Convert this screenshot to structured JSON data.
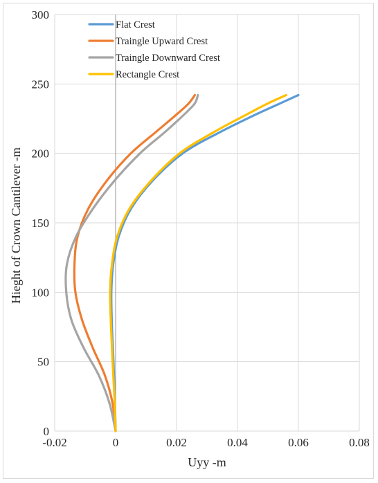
{
  "chart_data": {
    "type": "line",
    "xlabel": "Uyy  -m",
    "ylabel": "Hieght of Crown Cantilever  -m",
    "xlim": [
      -0.02,
      0.08
    ],
    "ylim": [
      0,
      300
    ],
    "x_ticks": [
      -0.02,
      0,
      0.02,
      0.04,
      0.06,
      0.08
    ],
    "y_ticks": [
      0,
      50,
      100,
      150,
      200,
      250,
      300
    ],
    "x_tick_labels": [
      "-0.02",
      "0",
      "0.02",
      "0.04",
      "0.06",
      "0.08"
    ],
    "y_tick_labels": [
      "0",
      "50",
      "100",
      "150",
      "200",
      "250",
      "300"
    ],
    "grid": {
      "horizontal": true,
      "vertical": true
    },
    "legend_position": "top-left",
    "series": [
      {
        "name": "Flat Crest",
        "color": "#5b9bd5",
        "points": [
          [
            0.0,
            0
          ],
          [
            -0.0003,
            25
          ],
          [
            -0.0007,
            50
          ],
          [
            -0.0012,
            75
          ],
          [
            -0.0014,
            100
          ],
          [
            -0.0008,
            120
          ],
          [
            0.001,
            140
          ],
          [
            0.005,
            160
          ],
          [
            0.012,
            180
          ],
          [
            0.022,
            200
          ],
          [
            0.034,
            215
          ],
          [
            0.046,
            228
          ],
          [
            0.054,
            236
          ],
          [
            0.06,
            242
          ]
        ]
      },
      {
        "name": "Traingle Upward Crest",
        "color": "#ed7d31",
        "points": [
          [
            0.0,
            0
          ],
          [
            -0.001,
            20
          ],
          [
            -0.0035,
            40
          ],
          [
            -0.0075,
            60
          ],
          [
            -0.011,
            80
          ],
          [
            -0.0132,
            100
          ],
          [
            -0.0135,
            120
          ],
          [
            -0.0125,
            140
          ],
          [
            -0.009,
            160
          ],
          [
            -0.003,
            180
          ],
          [
            0.005,
            200
          ],
          [
            0.013,
            215
          ],
          [
            0.02,
            228
          ],
          [
            0.024,
            236
          ],
          [
            0.026,
            242
          ]
        ]
      },
      {
        "name": "Traingle Downward Crest",
        "color": "#a5a5a5",
        "points": [
          [
            0.0,
            0
          ],
          [
            -0.002,
            20
          ],
          [
            -0.0055,
            40
          ],
          [
            -0.0105,
            60
          ],
          [
            -0.0145,
            80
          ],
          [
            -0.0162,
            100
          ],
          [
            -0.016,
            120
          ],
          [
            -0.013,
            140
          ],
          [
            -0.0075,
            160
          ],
          [
            -0.0005,
            180
          ],
          [
            0.008,
            200
          ],
          [
            0.016,
            215
          ],
          [
            0.0225,
            228
          ],
          [
            0.026,
            236
          ],
          [
            0.027,
            242
          ]
        ]
      },
      {
        "name": "Rectangle Crest",
        "color": "#ffc000",
        "points": [
          [
            0.0,
            0
          ],
          [
            -0.0004,
            25
          ],
          [
            -0.001,
            50
          ],
          [
            -0.0015,
            75
          ],
          [
            -0.0018,
            100
          ],
          [
            -0.0012,
            120
          ],
          [
            0.0005,
            140
          ],
          [
            0.0045,
            160
          ],
          [
            0.0115,
            180
          ],
          [
            0.021,
            200
          ],
          [
            0.032,
            215
          ],
          [
            0.043,
            228
          ],
          [
            0.05,
            236
          ],
          [
            0.056,
            242
          ]
        ]
      }
    ]
  }
}
